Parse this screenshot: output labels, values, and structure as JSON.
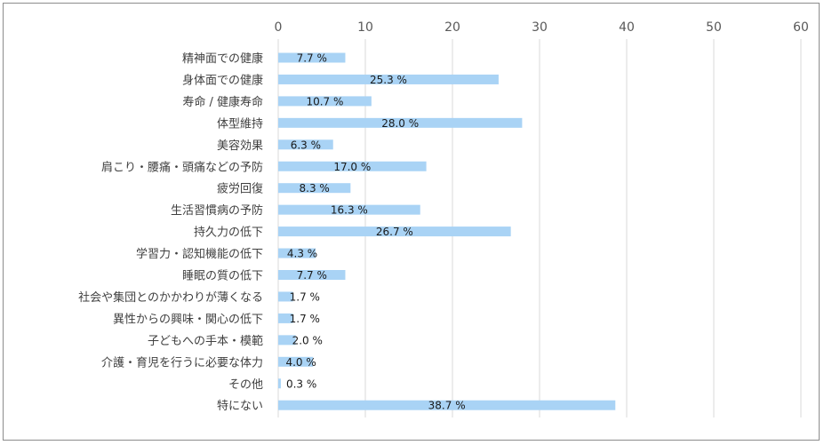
{
  "chart_data": {
    "type": "bar",
    "orientation": "horizontal",
    "title": "",
    "xlabel": "",
    "ylabel": "",
    "xlim": [
      0,
      60
    ],
    "x_ticks": [
      "0",
      "10",
      "20",
      "30",
      "40",
      "50",
      "60"
    ],
    "tick_values": [
      0,
      10,
      20,
      30,
      40,
      50,
      60
    ],
    "grid": "vertical",
    "bar_color": "#a9d3f5",
    "categories": [
      "精神面での健康",
      "身体面での健康",
      "寿命 / 健康寿命",
      "体型維持",
      "美容効果",
      "肩こり・腰痛・頭痛などの予防",
      "疲労回復",
      "生活習慣病の予防",
      "持久力の低下",
      "学習力・認知機能の低下",
      "睡眠の質の低下",
      "社会や集団とのかかわりが薄くなる",
      "異性からの興味・関心の低下",
      "子どもへの手本・模範",
      "介護・育児を行うに必要な体力",
      "その他",
      "特にない"
    ],
    "values": [
      7.7,
      25.3,
      10.7,
      28.0,
      6.3,
      17.0,
      8.3,
      16.3,
      26.7,
      4.3,
      7.7,
      1.7,
      1.7,
      2.0,
      4.0,
      0.3,
      38.7
    ],
    "data_labels": [
      "7.7 %",
      "25.3 %",
      "10.7 %",
      "28.0 %",
      "6.3 %",
      "17.0 %",
      "8.3 %",
      "16.3 %",
      "26.7 %",
      "4.3 %",
      "7.7 %",
      "1.7 %",
      "1.7 %",
      "2.0 %",
      "4.0 %",
      "0.3 %",
      "38.7 %"
    ]
  }
}
